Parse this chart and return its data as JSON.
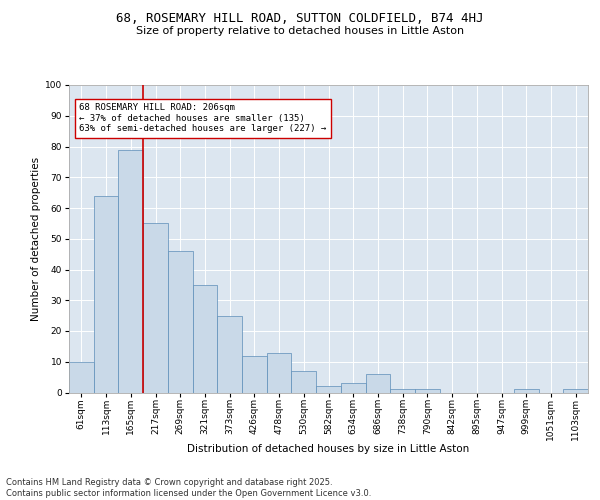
{
  "title1": "68, ROSEMARY HILL ROAD, SUTTON COLDFIELD, B74 4HJ",
  "title2": "Size of property relative to detached houses in Little Aston",
  "xlabel": "Distribution of detached houses by size in Little Aston",
  "ylabel": "Number of detached properties",
  "bins": [
    "61sqm",
    "113sqm",
    "165sqm",
    "217sqm",
    "269sqm",
    "321sqm",
    "373sqm",
    "426sqm",
    "478sqm",
    "530sqm",
    "582sqm",
    "634sqm",
    "686sqm",
    "738sqm",
    "790sqm",
    "842sqm",
    "895sqm",
    "947sqm",
    "999sqm",
    "1051sqm",
    "1103sqm"
  ],
  "values": [
    10,
    64,
    79,
    55,
    46,
    35,
    25,
    12,
    13,
    7,
    2,
    3,
    6,
    1,
    1,
    0,
    0,
    0,
    1,
    0,
    1
  ],
  "bar_color": "#c9d9e8",
  "bar_edge_color": "#5b8db8",
  "bg_color": "#dce6f0",
  "grid_color": "#ffffff",
  "vline_x": 2.5,
  "vline_color": "#cc0000",
  "annotation_text": "68 ROSEMARY HILL ROAD: 206sqm\n← 37% of detached houses are smaller (135)\n63% of semi-detached houses are larger (227) →",
  "annotation_box_color": "#cc0000",
  "ylim": [
    0,
    100
  ],
  "yticks": [
    0,
    10,
    20,
    30,
    40,
    50,
    60,
    70,
    80,
    90,
    100
  ],
  "footer": "Contains HM Land Registry data © Crown copyright and database right 2025.\nContains public sector information licensed under the Open Government Licence v3.0.",
  "title1_fontsize": 9,
  "title2_fontsize": 8,
  "annotation_fontsize": 6.5,
  "tick_fontsize": 6.5,
  "ylabel_fontsize": 7.5,
  "xlabel_fontsize": 7.5,
  "footer_fontsize": 6
}
